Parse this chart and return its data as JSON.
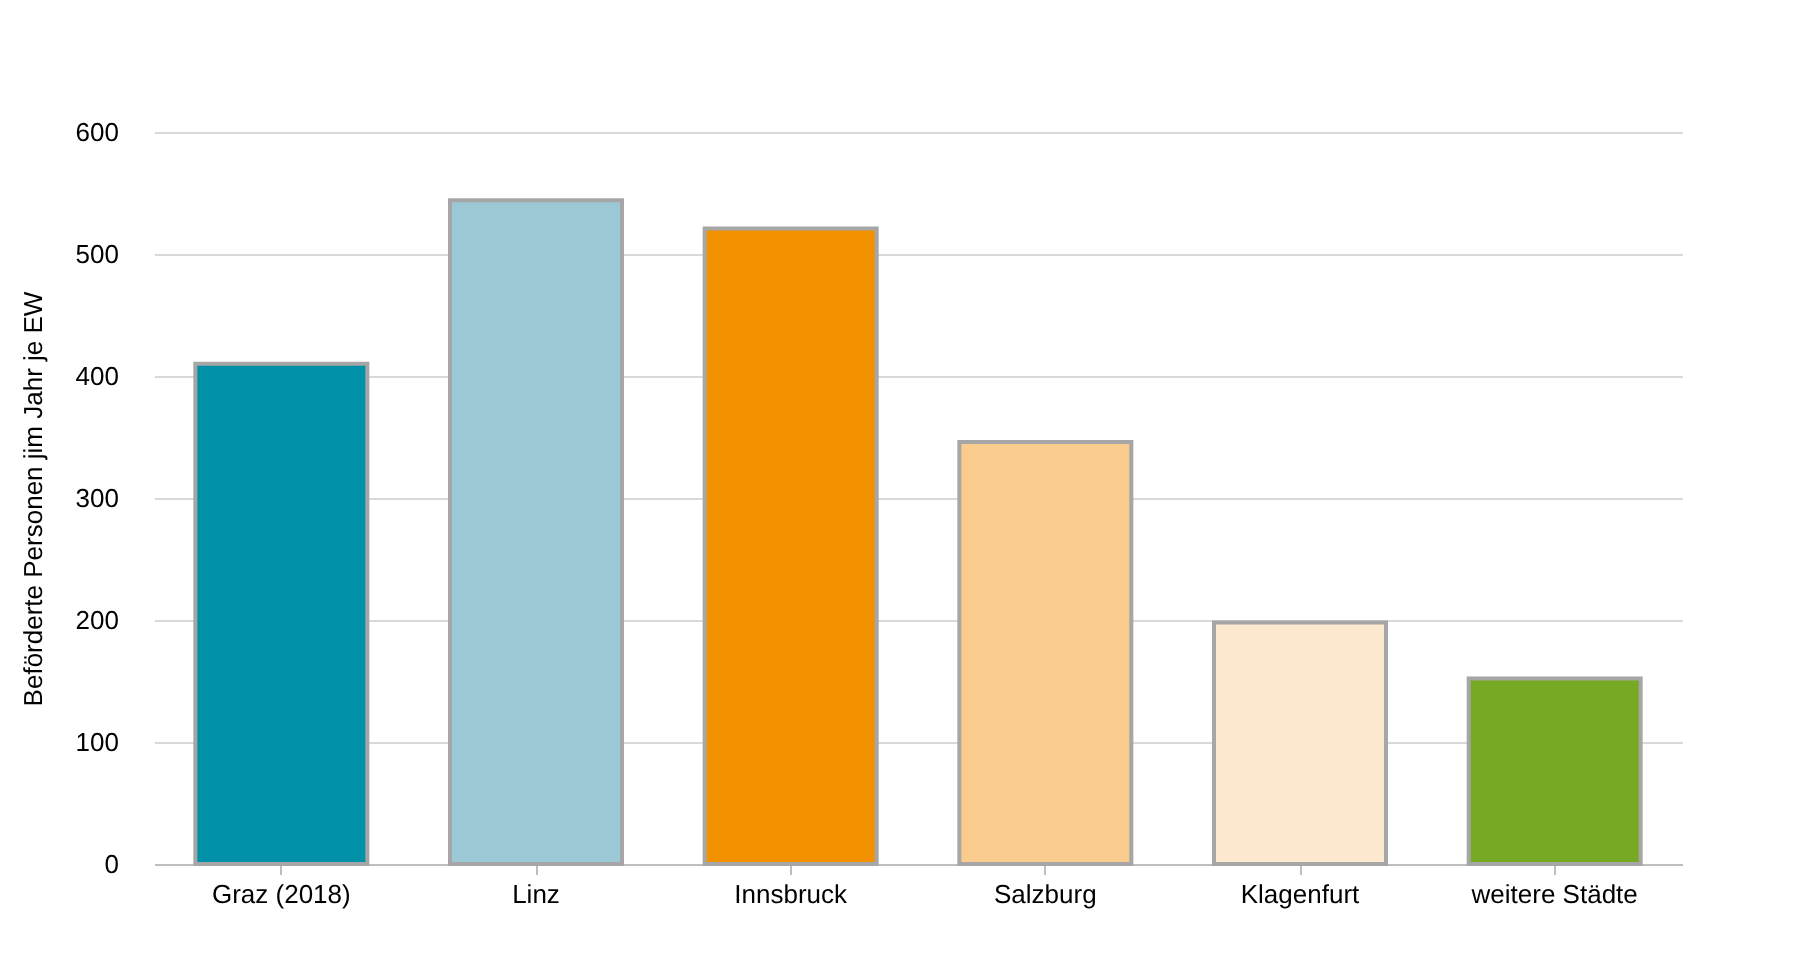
{
  "chart_data": {
    "type": "bar",
    "ylabel": "Beförderte Personen jim Jahr je EW",
    "categories": [
      "Graz (2018)",
      "Linz",
      "Innsbruck",
      "Salzburg",
      "Klagenfurt",
      "weitere Städte"
    ],
    "values": [
      410,
      544,
      521,
      346,
      198,
      152
    ],
    "colors": [
      "#0090a8",
      "#9cc8d6",
      "#f39200",
      "#f9cb8c",
      "#fde9d0",
      "#78a925"
    ],
    "ylim": [
      0,
      600
    ],
    "yticks": [
      0,
      100,
      200,
      300,
      400,
      500,
      600
    ],
    "grid": "y"
  }
}
